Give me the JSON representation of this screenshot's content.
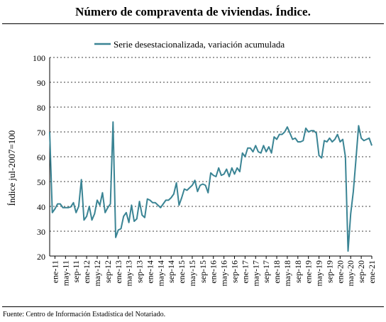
{
  "title": "Número de compraventa de viviendas. Índice.",
  "source": "Fuente: Centro de Información Estadística del Notariado.",
  "chart_data": {
    "type": "line",
    "ylabel": "Índice jul-2007=100",
    "ylim": [
      20,
      100
    ],
    "yticks": [
      20,
      30,
      40,
      50,
      60,
      70,
      80,
      90,
      100
    ],
    "grid": true,
    "legend_position": "top-center",
    "xtick_labels": [
      "ene-11",
      "may-11",
      "sep-11",
      "ene-12",
      "may-12",
      "sep-12",
      "ene-13",
      "may-13",
      "sep-13",
      "ene-14",
      "may-14",
      "sep-14",
      "ene-15",
      "may-15",
      "sep-15",
      "ene-16",
      "may-16",
      "sep-16",
      "ene-17",
      "may-17",
      "sep-17",
      "ene-18",
      "may-18",
      "sep-18",
      "ene-19",
      "may-19",
      "sep-19",
      "ene-20",
      "may-20",
      "sep-20",
      "ene-21"
    ],
    "series": [
      {
        "name": "Serie desestacionalizada, variación acumulada",
        "color": "#3a8494",
        "x_start": "2010-11",
        "values": [
          70,
          37.5,
          39,
          41,
          41,
          39.5,
          39.5,
          39.5,
          39.8,
          41.5,
          37.5,
          40,
          50.8,
          34.5,
          36,
          40,
          34.5,
          37,
          42.5,
          40.5,
          45.5,
          37.5,
          39.5,
          41,
          74,
          27.5,
          30.5,
          31,
          36,
          37.5,
          33.5,
          40.5,
          34,
          35,
          42,
          36.5,
          35.5,
          43,
          42.5,
          41.5,
          41.5,
          40.5,
          39.5,
          41,
          42.5,
          42.5,
          43.5,
          45,
          49.5,
          40.5,
          43.5,
          47,
          46.5,
          47.5,
          48.5,
          50.5,
          46,
          48.5,
          49,
          48.5,
          45.5,
          53.5,
          52.5,
          52,
          55.5,
          52.5,
          53,
          55,
          52,
          55.5,
          53,
          55.5,
          54,
          61.5,
          60,
          63.5,
          63.5,
          62,
          64.5,
          62,
          61.5,
          64.5,
          62,
          64,
          61.5,
          68,
          67,
          69,
          69,
          70,
          72,
          69.5,
          67,
          67.5,
          66,
          66,
          66.5,
          71.5,
          70,
          70.5,
          70.5,
          69.5,
          60.5,
          59.5,
          66.5,
          66,
          67.5,
          66,
          67,
          69,
          66,
          67,
          60,
          22,
          37,
          46,
          59,
          72.5,
          67.5,
          66.5,
          67,
          67.5,
          64.5
        ]
      }
    ]
  }
}
